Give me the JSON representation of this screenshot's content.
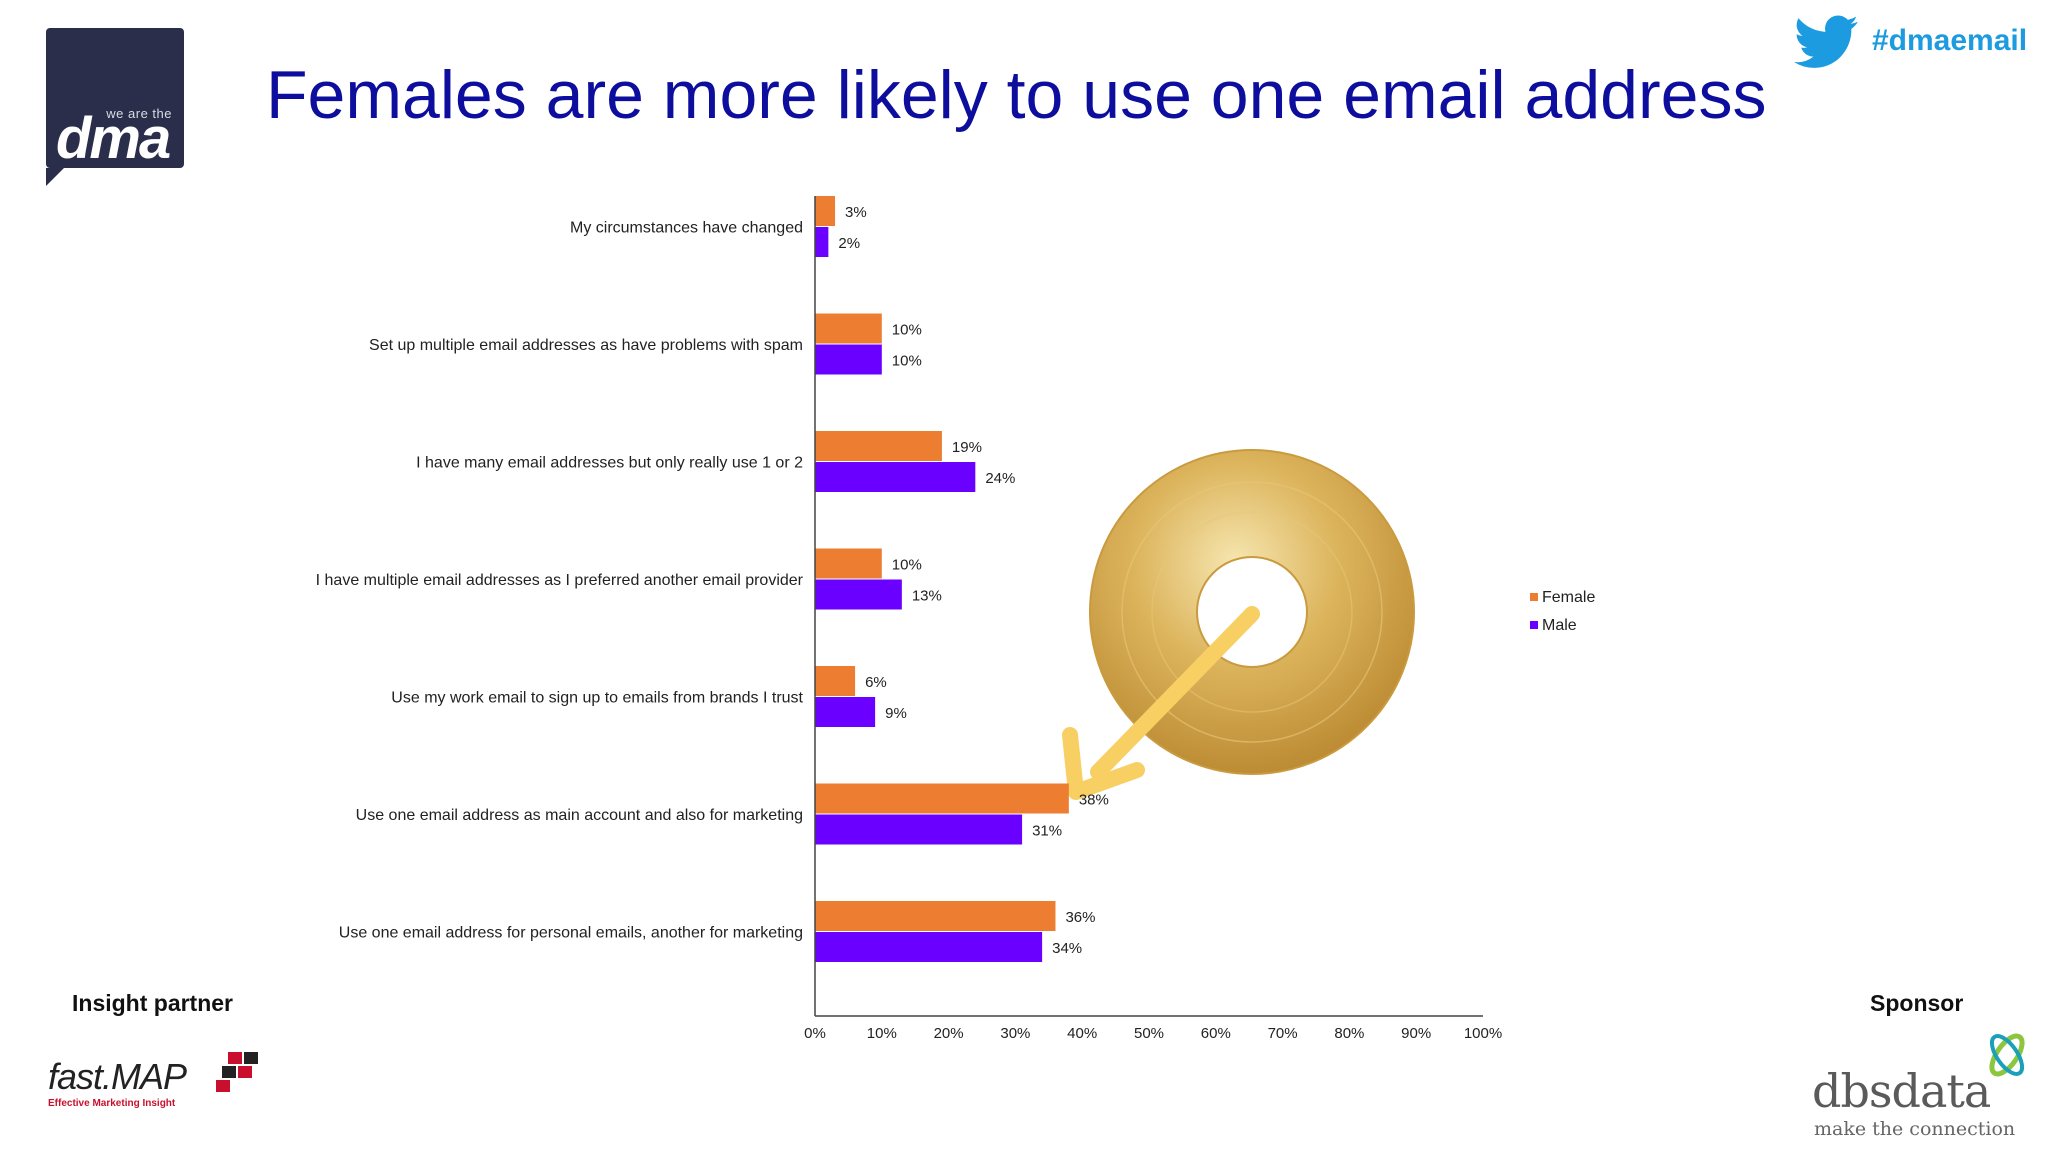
{
  "header": {
    "title": "Females are more likely to use one email address",
    "hashtag": "#dmaemail"
  },
  "logos": {
    "dma_small": "we are the",
    "dma_big": "dma",
    "fastmap_word": "fast.MAP",
    "fastmap_tagline": "Effective Marketing Insight",
    "dbsdata_word": "dbsdata",
    "dbsdata_tagline": "make the connection"
  },
  "footer": {
    "insight_partner_label": "Insight partner",
    "sponsor_label": "Sponsor"
  },
  "colors": {
    "title": "#0d0d9e",
    "female": "#ed7d31",
    "male": "#6a00ff",
    "hashtag": "#1d9be0"
  },
  "chart_data": {
    "type": "bar",
    "orientation": "horizontal",
    "categories": [
      "My circumstances have changed",
      "Set up multiple email addresses as have problems with spam",
      "I have many email addresses but only really use 1 or 2",
      "I have multiple email addresses as I preferred another email provider",
      "Use my work email to sign up to emails from brands I trust",
      "Use one email address as main account and also for marketing",
      "Use one email address for personal emails, another for marketing"
    ],
    "series": [
      {
        "name": "Female",
        "values": [
          3,
          10,
          19,
          10,
          6,
          38,
          36
        ],
        "labels": [
          "3%",
          "10%",
          "19%",
          "10%",
          "6%",
          "38%",
          "36%"
        ]
      },
      {
        "name": "Male",
        "values": [
          2,
          10,
          24,
          13,
          9,
          31,
          34
        ],
        "labels": [
          "2%",
          "10%",
          "24%",
          "13%",
          "9%",
          "31%",
          "34%"
        ]
      }
    ],
    "xlim": [
      0,
      100
    ],
    "xticks": [
      "0%",
      "10%",
      "20%",
      "30%",
      "40%",
      "50%",
      "60%",
      "70%",
      "80%",
      "90%",
      "100%"
    ],
    "legend_position": "right",
    "grid": false
  }
}
